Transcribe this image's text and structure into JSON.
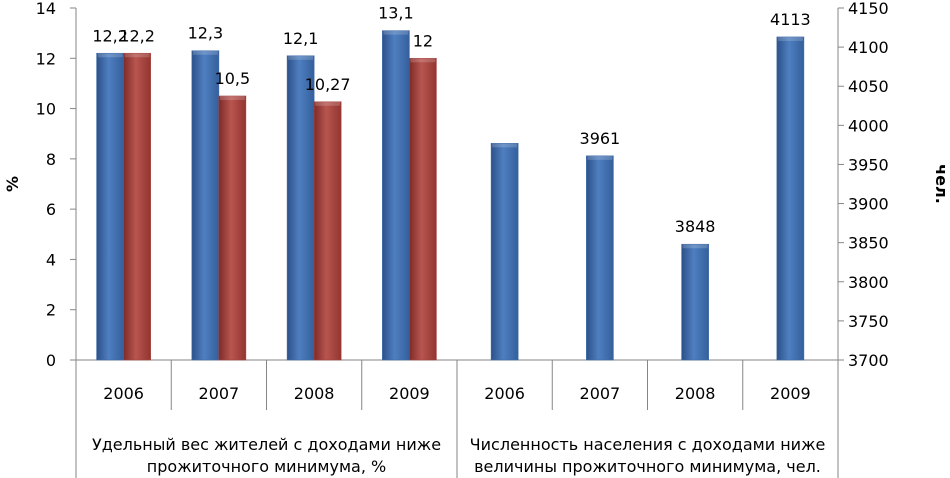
{
  "chart_data": {
    "type": "bar",
    "title": "",
    "left_axis": {
      "label": "%",
      "ylim": [
        0,
        14
      ],
      "ticks": [
        "0",
        "2",
        "4",
        "6",
        "8",
        "10",
        "12",
        "14"
      ]
    },
    "right_axis": {
      "label": "чел.",
      "ylim": [
        3700,
        4150
      ],
      "ticks": [
        "3700",
        "3750",
        "3800",
        "3850",
        "3900",
        "3950",
        "4000",
        "4050",
        "4100",
        "4150"
      ]
    },
    "groups": [
      {
        "label_lines": [
          "Удельный вес жителей с доходами ниже",
          "прожиточного минимума, %"
        ],
        "axis": "left",
        "categories": [
          "2006",
          "2007",
          "2008",
          "2009"
        ],
        "series": [
          {
            "values": [
              12.2,
              12.3,
              12.1,
              13.1
            ],
            "labels": [
              "12,2",
              "12,3",
              "12,1",
              "13,1"
            ],
            "color": "#3d6aa8"
          },
          {
            "values": [
              12.2,
              10.5,
              10.27,
              12.0
            ],
            "labels": [
              "12,2",
              "10,5",
              "10,27",
              "12"
            ],
            "color": "#a6403c"
          }
        ]
      },
      {
        "label_lines": [
          "Численность населения  с доходами ниже",
          "величины прожиточного минимума, чел."
        ],
        "axis": "right",
        "categories": [
          "2006",
          "2007",
          "2008",
          "2009"
        ],
        "series": [
          {
            "values": [
              3977,
              3961,
              3848,
              4113
            ],
            "labels": [
              "",
              "3961",
              "3848",
              "4113"
            ],
            "color": "#3d6aa8"
          }
        ]
      }
    ],
    "grid": false,
    "legend": "none"
  }
}
